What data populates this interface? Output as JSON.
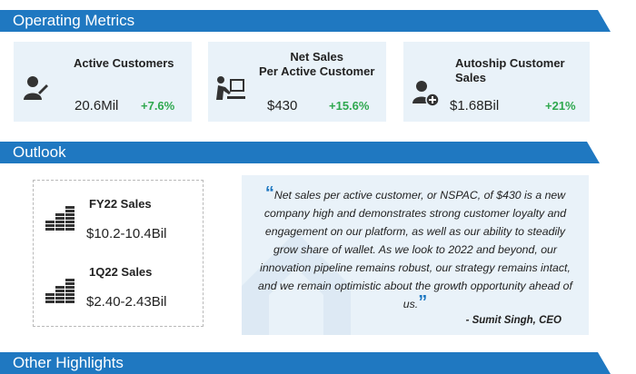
{
  "sections": {
    "operating_metrics": "Operating Metrics",
    "outlook": "Outlook",
    "other_highlights": "Other Highlights"
  },
  "metrics": [
    {
      "label": "Active Customers",
      "value": "20.6Mil",
      "change": "+7.6%",
      "icon": "person-edit-icon"
    },
    {
      "label_line1": "Net Sales",
      "label_line2": "Per Active Customer",
      "value": "$430",
      "change": "+15.6%",
      "icon": "person-computer-icon"
    },
    {
      "label": "Autoship Customer Sales",
      "value": "$1.68Bil",
      "change": "+21%",
      "icon": "person-add-icon"
    }
  ],
  "outlook": [
    {
      "label": "FY22 Sales",
      "value": "$10.2-10.4Bil",
      "icon": "coins-icon"
    },
    {
      "label": "1Q22 Sales",
      "value": "$2.40-2.43Bil",
      "icon": "coins-icon"
    }
  ],
  "quote": {
    "text": "Net sales per active customer, or NSPAC, of $430 is a new company high and demonstrates strong customer loyalty and engagement on our platform, as well as our ability to steadily grow share of wallet. As we look to 2022 and beyond, our innovation pipeline remains robust, our strategy remains intact, and we remain optimistic about the growth opportunity ahead of us.",
    "author": "- Sumit Singh, CEO"
  },
  "colors": {
    "accent": "#1f78c1",
    "card_bg": "#e9f2f9",
    "positive": "#2fa84f"
  }
}
